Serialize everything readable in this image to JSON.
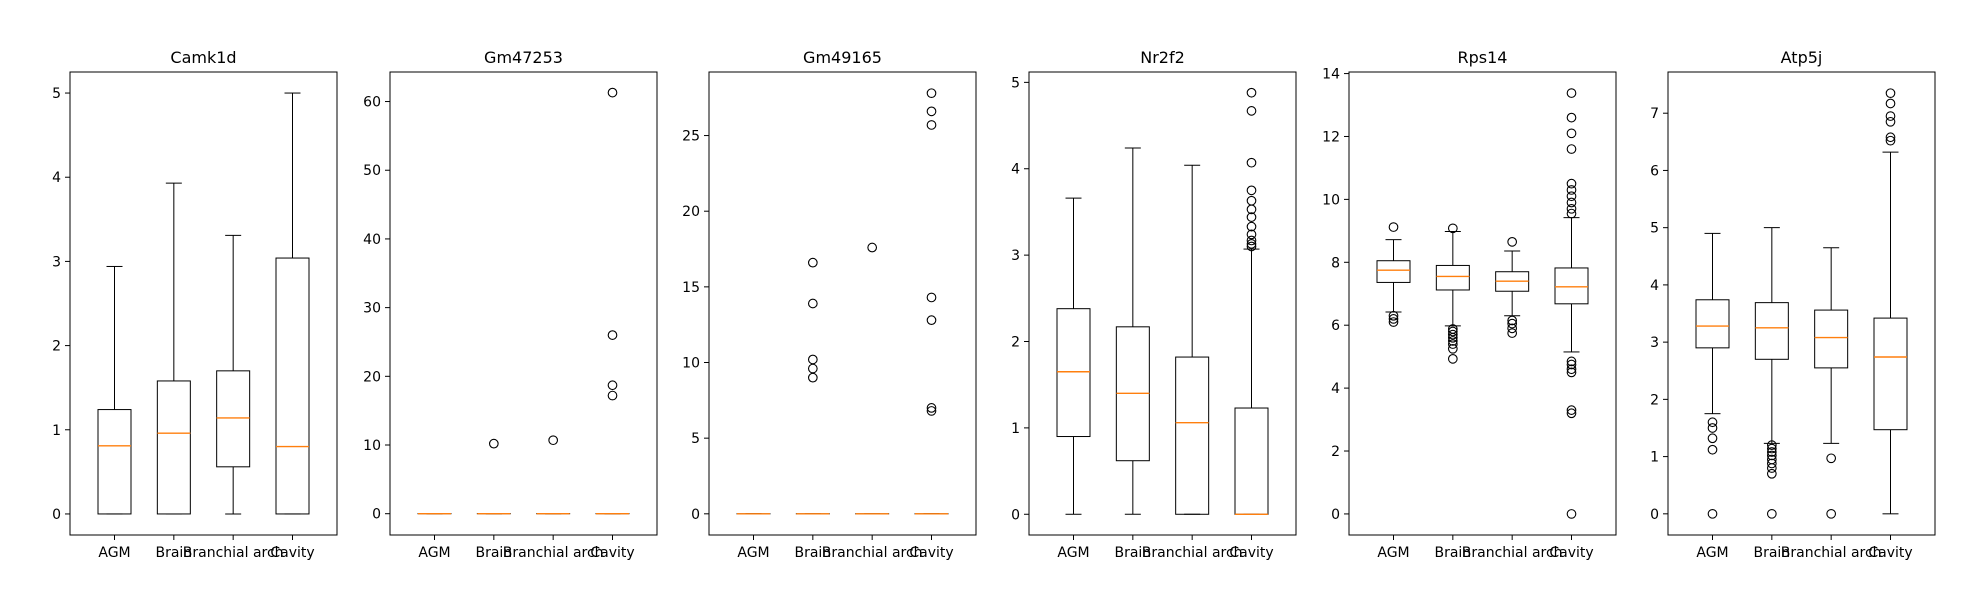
{
  "chart_data": [
    {
      "type": "box",
      "title": "Camk1d",
      "categories": [
        "AGM",
        "Brain",
        "Branchial arch",
        "Cavity"
      ],
      "ylim": [
        -0.25,
        5.25
      ],
      "yticks": [
        0,
        1,
        2,
        3,
        4,
        5
      ],
      "boxes": [
        {
          "whislo": 0,
          "q1": 0,
          "med": 0.81,
          "q3": 1.24,
          "whishi": 2.94,
          "fliers": []
        },
        {
          "whislo": 0,
          "q1": 0,
          "med": 0.96,
          "q3": 1.58,
          "whishi": 3.93,
          "fliers": []
        },
        {
          "whislo": 0,
          "q1": 0.56,
          "med": 1.14,
          "q3": 1.7,
          "whishi": 3.31,
          "fliers": []
        },
        {
          "whislo": 0,
          "q1": 0,
          "med": 0.8,
          "q3": 3.04,
          "whishi": 5.0,
          "fliers": []
        }
      ]
    },
    {
      "type": "box",
      "title": "Gm47253",
      "categories": [
        "AGM",
        "Brain",
        "Branchial arch",
        "Cavity"
      ],
      "ylim": [
        -3.1,
        64.3
      ],
      "yticks": [
        0,
        10,
        20,
        30,
        40,
        50,
        60
      ],
      "boxes": [
        {
          "whislo": 0,
          "q1": 0,
          "med": 0,
          "q3": 0,
          "whishi": 0,
          "fliers": []
        },
        {
          "whislo": 0,
          "q1": 0,
          "med": 0,
          "q3": 0,
          "whishi": 0,
          "fliers": [
            10.2
          ]
        },
        {
          "whislo": 0,
          "q1": 0,
          "med": 0,
          "q3": 0,
          "whishi": 0,
          "fliers": [
            10.7
          ]
        },
        {
          "whislo": 0,
          "q1": 0,
          "med": 0,
          "q3": 0,
          "whishi": 0,
          "fliers": [
            17.2,
            18.7,
            26.0,
            61.3
          ]
        }
      ]
    },
    {
      "type": "box",
      "title": "Gm49165",
      "categories": [
        "AGM",
        "Brain",
        "Branchial arch",
        "Cavity"
      ],
      "ylim": [
        -1.4,
        29.2
      ],
      "yticks": [
        0,
        5,
        10,
        15,
        20,
        25
      ],
      "boxes": [
        {
          "whislo": 0,
          "q1": 0,
          "med": 0,
          "q3": 0,
          "whishi": 0,
          "fliers": []
        },
        {
          "whislo": 0,
          "q1": 0,
          "med": 0,
          "q3": 0,
          "whishi": 0,
          "fliers": [
            9.0,
            9.6,
            10.2,
            13.9,
            16.6
          ]
        },
        {
          "whislo": 0,
          "q1": 0,
          "med": 0,
          "q3": 0,
          "whishi": 0,
          "fliers": [
            17.6
          ]
        },
        {
          "whislo": 0,
          "q1": 0,
          "med": 0,
          "q3": 0,
          "whishi": 0,
          "fliers": [
            6.8,
            7.0,
            12.8,
            14.3,
            25.7,
            26.6,
            27.8
          ]
        }
      ]
    },
    {
      "type": "box",
      "title": "Nr2f2",
      "categories": [
        "AGM",
        "Brain",
        "Branchial arch",
        "Cavity"
      ],
      "ylim": [
        -0.24,
        5.12
      ],
      "yticks": [
        0,
        1,
        2,
        3,
        4,
        5
      ],
      "boxes": [
        {
          "whislo": 0,
          "q1": 0.9,
          "med": 1.65,
          "q3": 2.38,
          "whishi": 3.66,
          "fliers": []
        },
        {
          "whislo": 0,
          "q1": 0.62,
          "med": 1.4,
          "q3": 2.17,
          "whishi": 4.24,
          "fliers": []
        },
        {
          "whislo": 0,
          "q1": 0,
          "med": 1.06,
          "q3": 1.82,
          "whishi": 4.04,
          "fliers": []
        },
        {
          "whislo": 0,
          "q1": 0,
          "med": 0,
          "q3": 1.23,
          "whishi": 3.07,
          "fliers": [
            3.1,
            3.13,
            3.17,
            3.24,
            3.33,
            3.44,
            3.53,
            3.63,
            3.75,
            4.07,
            4.67,
            4.88
          ]
        }
      ]
    },
    {
      "type": "box",
      "title": "Rps14",
      "categories": [
        "AGM",
        "Brain",
        "Branchial arch",
        "Cavity"
      ],
      "ylim": [
        -0.67,
        14.05
      ],
      "yticks": [
        0,
        2,
        4,
        6,
        8,
        10,
        12,
        14
      ],
      "boxes": [
        {
          "whislo": 6.42,
          "q1": 7.36,
          "med": 7.75,
          "q3": 8.05,
          "whishi": 8.72,
          "fliers": [
            6.1,
            6.2,
            6.3,
            9.12
          ]
        },
        {
          "whislo": 5.98,
          "q1": 7.12,
          "med": 7.55,
          "q3": 7.9,
          "whishi": 8.98,
          "fliers": [
            4.93,
            5.25,
            5.4,
            5.5,
            5.6,
            5.7,
            5.8,
            5.88,
            9.08
          ]
        },
        {
          "whislo": 6.3,
          "q1": 7.08,
          "med": 7.4,
          "q3": 7.7,
          "whishi": 8.36,
          "fliers": [
            5.75,
            5.9,
            6.05,
            6.15,
            8.65
          ]
        },
        {
          "whislo": 5.15,
          "q1": 6.68,
          "med": 7.22,
          "q3": 7.82,
          "whishi": 9.42,
          "fliers": [
            0,
            3.2,
            3.3,
            4.5,
            4.6,
            4.75,
            4.85,
            9.55,
            9.7,
            9.9,
            10.1,
            10.3,
            10.5,
            11.6,
            12.1,
            12.6,
            13.38
          ]
        }
      ]
    },
    {
      "type": "box",
      "title": "Atp5j",
      "categories": [
        "AGM",
        "Brain",
        "Branchial arch",
        "Cavity"
      ],
      "ylim": [
        -0.37,
        7.72
      ],
      "yticks": [
        0,
        1,
        2,
        3,
        4,
        5,
        6,
        7
      ],
      "boxes": [
        {
          "whislo": 1.75,
          "q1": 2.9,
          "med": 3.28,
          "q3": 3.74,
          "whishi": 4.9,
          "fliers": [
            0,
            1.12,
            1.32,
            1.5,
            1.6
          ]
        },
        {
          "whislo": 1.23,
          "q1": 2.7,
          "med": 3.25,
          "q3": 3.69,
          "whishi": 5.0,
          "fliers": [
            0,
            0.7,
            0.8,
            0.88,
            0.95,
            1.02,
            1.08,
            1.14,
            1.2
          ]
        },
        {
          "whislo": 1.23,
          "q1": 2.55,
          "med": 3.08,
          "q3": 3.56,
          "whishi": 4.65,
          "fliers": [
            0,
            0.97
          ]
        },
        {
          "whislo": 0,
          "q1": 1.47,
          "med": 2.74,
          "q3": 3.42,
          "whishi": 6.32,
          "fliers": [
            6.52,
            6.58,
            6.85,
            6.95,
            7.17,
            7.35
          ]
        }
      ]
    }
  ]
}
